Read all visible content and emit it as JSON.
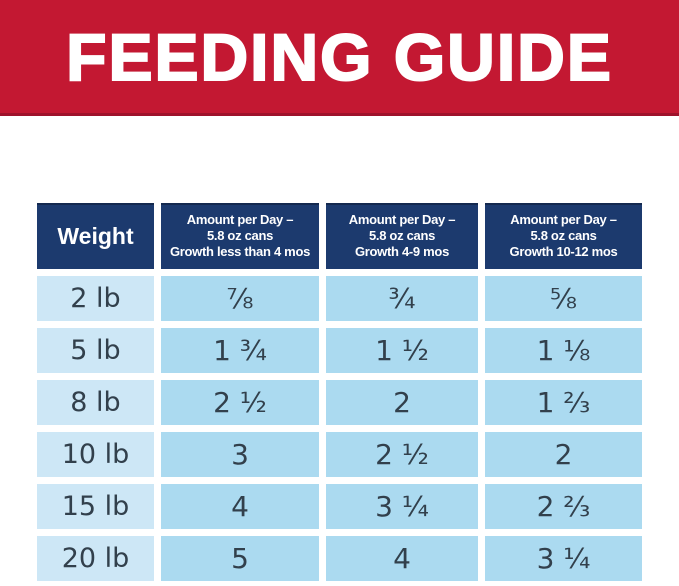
{
  "banner": {
    "title": "FEEDING GUIDE"
  },
  "table": {
    "weight_header": "Weight",
    "columns": [
      {
        "line1": "Amount per Day –",
        "line2": "5.8 oz cans",
        "line3": "Growth less than 4 mos"
      },
      {
        "line1": "Amount per Day –",
        "line2": "5.8 oz cans",
        "line3": "Growth 4-9 mos"
      },
      {
        "line1": "Amount per Day –",
        "line2": "5.8 oz cans",
        "line3": "Growth 10-12 mos"
      }
    ],
    "rows": [
      {
        "weight": "2 lb",
        "values": [
          "⅞",
          "¾",
          "⅝"
        ]
      },
      {
        "weight": "5 lb",
        "values": [
          "1 ¾",
          "1 ½",
          "1 ⅛"
        ]
      },
      {
        "weight": "8 lb",
        "values": [
          "2 ½",
          "2",
          "1 ⅔"
        ]
      },
      {
        "weight": "10 lb",
        "values": [
          "3",
          "2 ½",
          "2"
        ]
      },
      {
        "weight": "15 lb",
        "values": [
          "4",
          "3 ¼",
          "2 ⅔"
        ]
      },
      {
        "weight": "20 lb",
        "values": [
          "5",
          "4",
          "3 ¼"
        ]
      }
    ]
  },
  "colors": {
    "brand-red": "#c31832",
    "header-navy": "#1c3a6e",
    "weight-cell-blue": "#cde7f6",
    "amount-cell-blue": "#abdaf0",
    "cell-text": "#32404c",
    "header-text": "#ffffff"
  },
  "chart_data": {
    "type": "table",
    "title": "FEEDING GUIDE",
    "columns": [
      "Weight",
      "Amount per Day – 5.8 oz cans Growth less than 4 mos",
      "Amount per Day – 5.8 oz cans Growth 4-9 mos",
      "Amount per Day – 5.8 oz cans Growth 10-12 mos"
    ],
    "rows": [
      [
        "2 lb",
        "7/8",
        "3/4",
        "5/8"
      ],
      [
        "5 lb",
        "1 3/4",
        "1 1/2",
        "1 1/8"
      ],
      [
        "8 lb",
        "2 1/2",
        "2",
        "1 2/3"
      ],
      [
        "10 lb",
        "3",
        "2 1/2",
        "2"
      ],
      [
        "15 lb",
        "4",
        "3 1/4",
        "2 2/3"
      ],
      [
        "20 lb",
        "5",
        "4",
        "3 1/4"
      ]
    ]
  }
}
